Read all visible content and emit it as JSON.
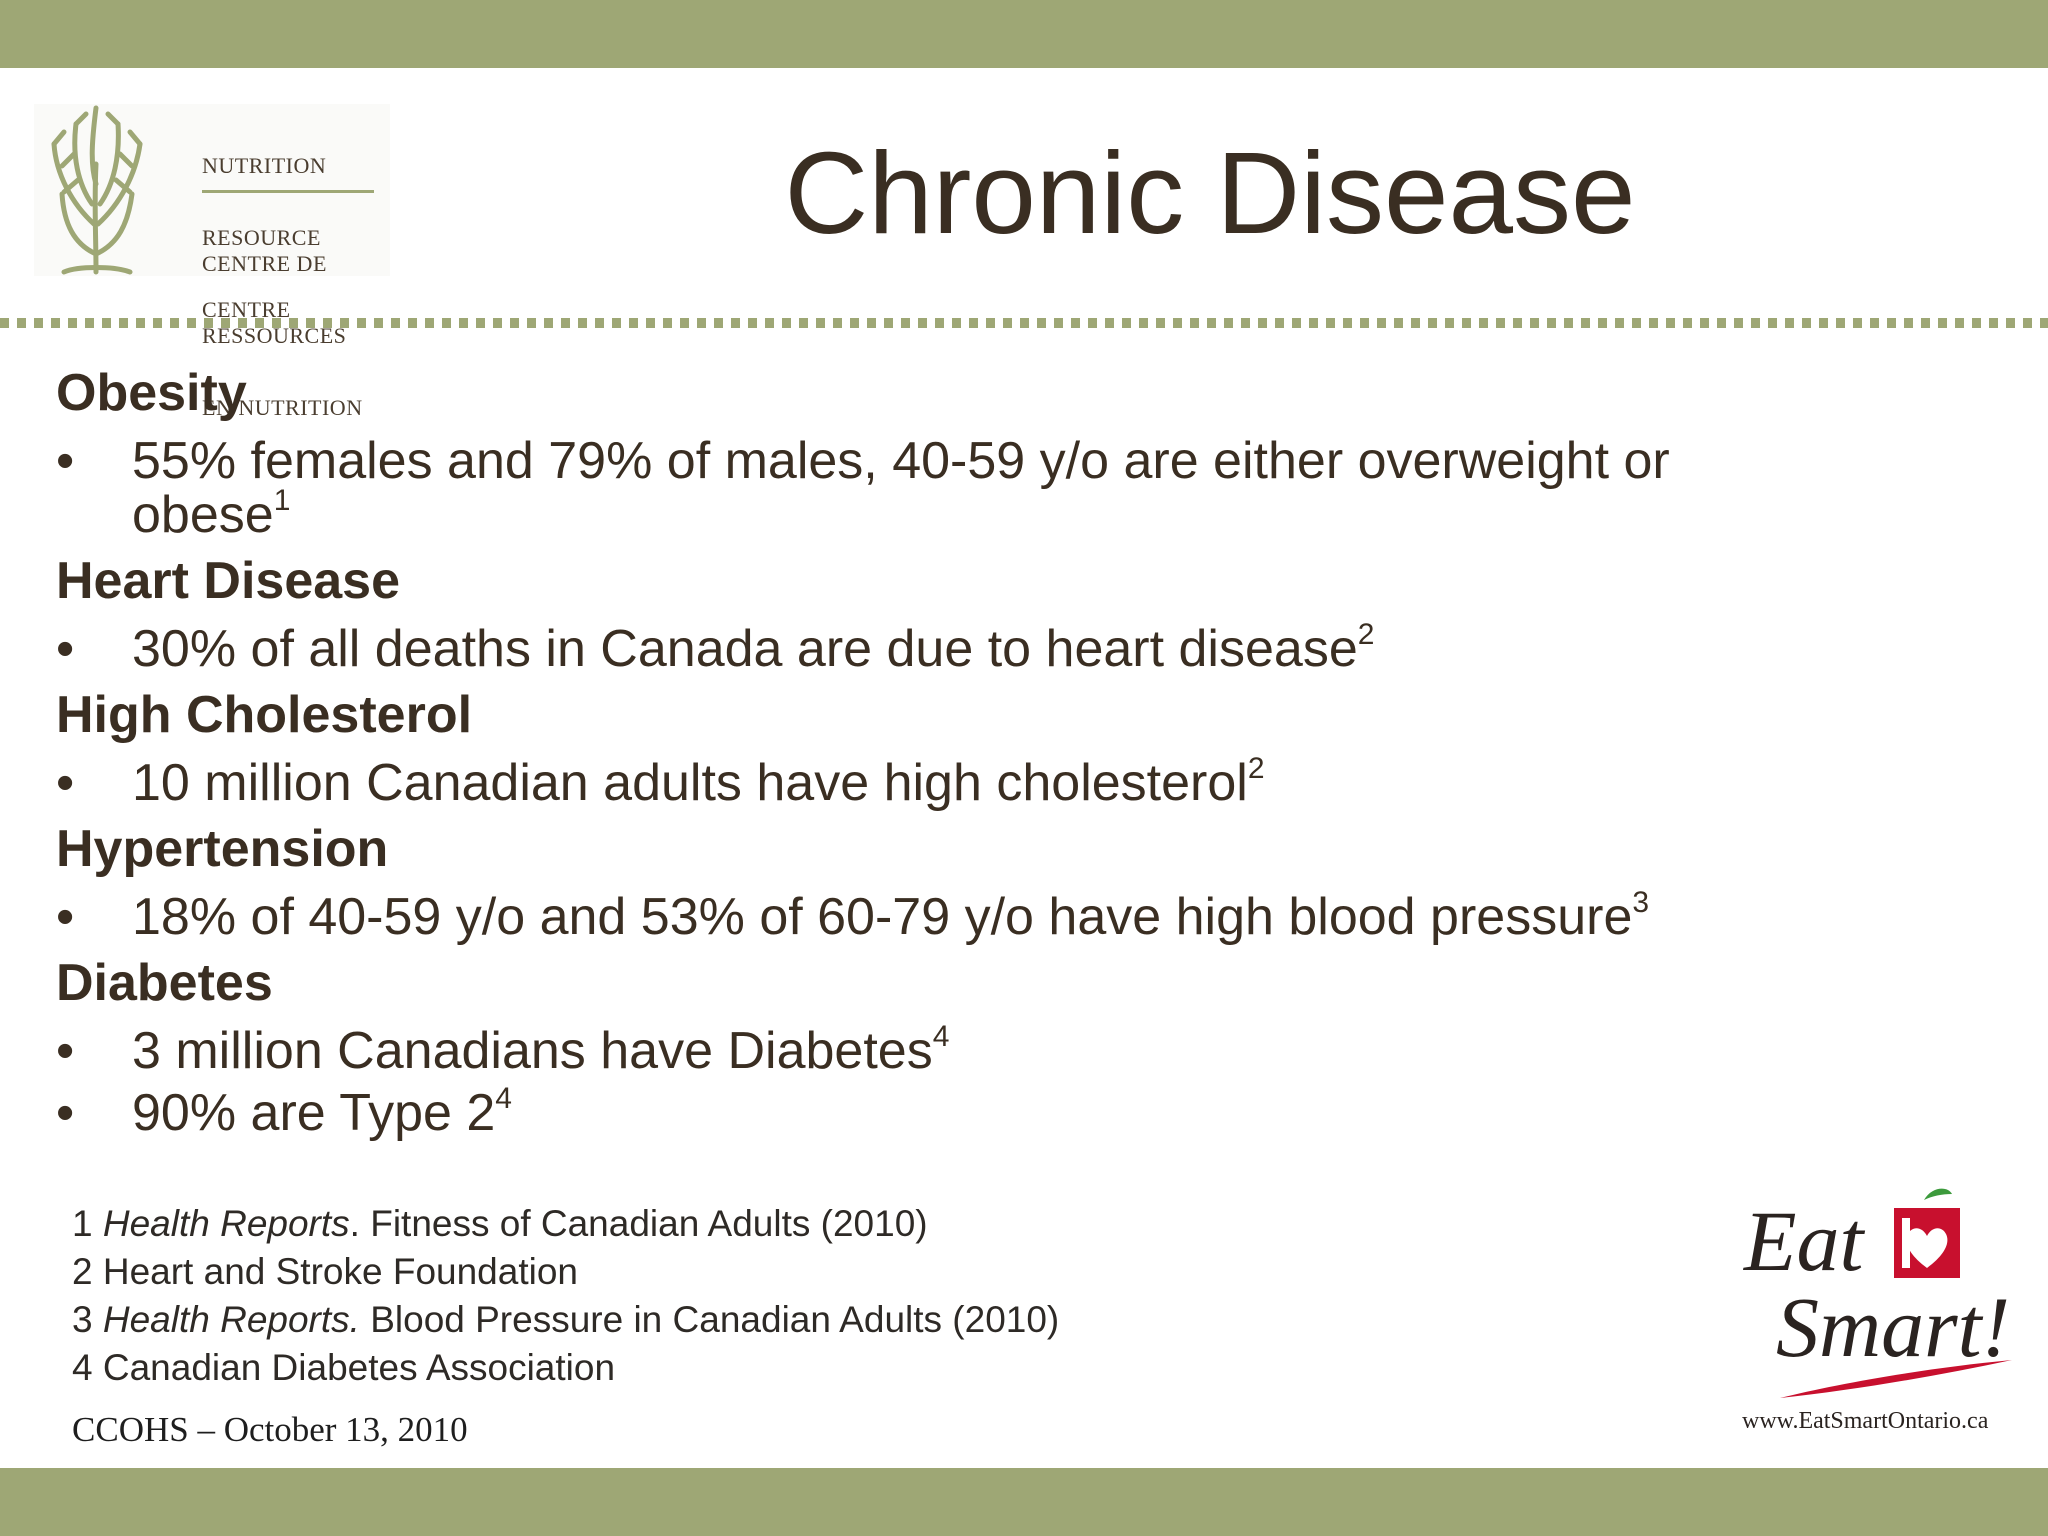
{
  "branding": {
    "nrc_logo": {
      "en_lines": [
        "NUTRITION",
        "RESOURCE",
        "CENTRE"
      ],
      "fr_lines": [
        "CENTRE DE",
        "RESSOURCES",
        "EN NUTRITION"
      ]
    },
    "eat_smart": {
      "word1": "Eat",
      "word2": "Smart!",
      "url": "www.EatSmartOntario.ca"
    }
  },
  "title": "Chronic Disease",
  "sections": [
    {
      "heading": "Obesity",
      "bullets": [
        {
          "text": "55% females and 79% of males, 40-59 y/o are either overweight or",
          "text2": "obese",
          "sup": "1"
        }
      ]
    },
    {
      "heading": "Heart Disease",
      "bullets": [
        {
          "text": "30% of all deaths in Canada are due to heart disease",
          "sup": "2"
        }
      ]
    },
    {
      "heading": "High Cholesterol",
      "bullets": [
        {
          "text": "10 million Canadian adults have high cholesterol",
          "sup": "2"
        }
      ]
    },
    {
      "heading": "Hypertension",
      "bullets": [
        {
          "text": "18% of 40-59 y/o and 53% of 60-79 y/o have high blood pressure",
          "sup": "3"
        }
      ]
    },
    {
      "heading": "Diabetes",
      "bullets": [
        {
          "text": "3 million Canadians have Diabetes",
          "sup": "4"
        },
        {
          "text": "90% are Type 2",
          "sup": "4"
        }
      ]
    }
  ],
  "bullet_char": "•",
  "references": [
    {
      "num": "1",
      "italic": "Health Reports",
      "rest": ". Fitness of Canadian Adults (2010)"
    },
    {
      "num": "2",
      "italic": "",
      "rest": "Heart and Stroke Foundation"
    },
    {
      "num": "3",
      "italic": "Health Reports.",
      "rest": " Blood Pressure in Canadian Adults (2010)"
    },
    {
      "num": "4",
      "italic": "",
      "rest": "Canadian Diabetes Association"
    }
  ],
  "footer": "CCOHS – October 13, 2010",
  "colors": {
    "band": "#9ea775",
    "text": "#3a2e22",
    "apple_red": "#c8102e",
    "leaf_green": "#3c9a3c"
  }
}
